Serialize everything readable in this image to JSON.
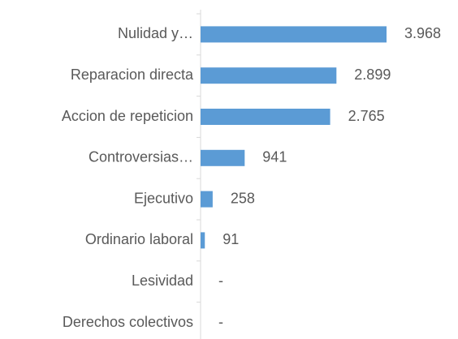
{
  "chart_data": {
    "type": "bar",
    "orientation": "horizontal",
    "categories": [
      "Nulidad y…",
      "Reparacion directa",
      "Accion de repeticion",
      "Controversias…",
      "Ejecutivo",
      "Ordinario laboral",
      "Lesividad",
      "Derechos colectivos"
    ],
    "values": [
      3968,
      2899,
      2765,
      941,
      258,
      91,
      0,
      0
    ],
    "value_labels": [
      "3.968",
      "2.899",
      "2.765",
      "941",
      "258",
      "91",
      "-",
      "-"
    ],
    "color": "#5b9bd5"
  }
}
